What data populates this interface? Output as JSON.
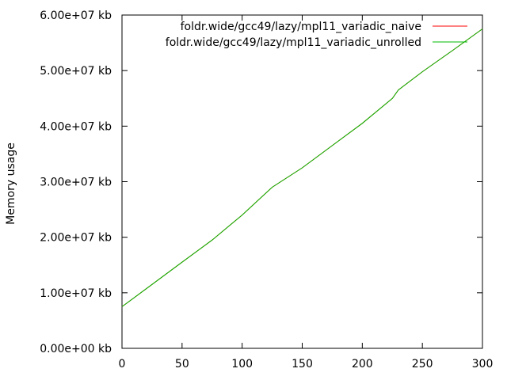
{
  "chart_data": {
    "type": "line",
    "title": "",
    "xlabel": "",
    "ylabel": "Memory usage",
    "xlim": [
      0,
      300
    ],
    "ylim": [
      0,
      60000000
    ],
    "x_ticks": [
      0,
      50,
      100,
      150,
      200,
      250,
      300
    ],
    "y_ticks": [
      0,
      10000000,
      20000000,
      30000000,
      40000000,
      50000000,
      60000000
    ],
    "x_tick_labels": [
      "0",
      "50",
      "100",
      "150",
      "200",
      "250",
      "300"
    ],
    "y_tick_labels": [
      "0.00e+00 kb",
      "1.00e+07 kb",
      "2.00e+07 kb",
      "3.00e+07 kb",
      "4.00e+07 kb",
      "5.00e+07 kb",
      "6.00e+07 kb"
    ],
    "grid": false,
    "legend_position": "top-right",
    "series": [
      {
        "name": "foldr.wide/gcc49/lazy/mpl11_variadic_naive",
        "color": "#ff0000",
        "x": [
          0,
          25,
          50,
          75,
          90,
          100,
          110,
          125,
          150,
          175,
          200,
          225,
          230,
          250,
          275,
          300
        ],
        "y": [
          7500000,
          11500000,
          15500000,
          19500000,
          22200000,
          24000000,
          26000000,
          29000000,
          32500000,
          36500000,
          40500000,
          45000000,
          46500000,
          49800000,
          53600000,
          57500000
        ]
      },
      {
        "name": "foldr.wide/gcc49/lazy/mpl11_variadic_unrolled",
        "color": "#00bb00",
        "x": [
          0,
          25,
          50,
          75,
          90,
          100,
          110,
          125,
          150,
          175,
          200,
          225,
          230,
          250,
          275,
          300
        ],
        "y": [
          7500000,
          11500000,
          15500000,
          19500000,
          22200000,
          24000000,
          26000000,
          29000000,
          32500000,
          36500000,
          40500000,
          45000000,
          46500000,
          49800000,
          53600000,
          57500000
        ]
      }
    ]
  }
}
